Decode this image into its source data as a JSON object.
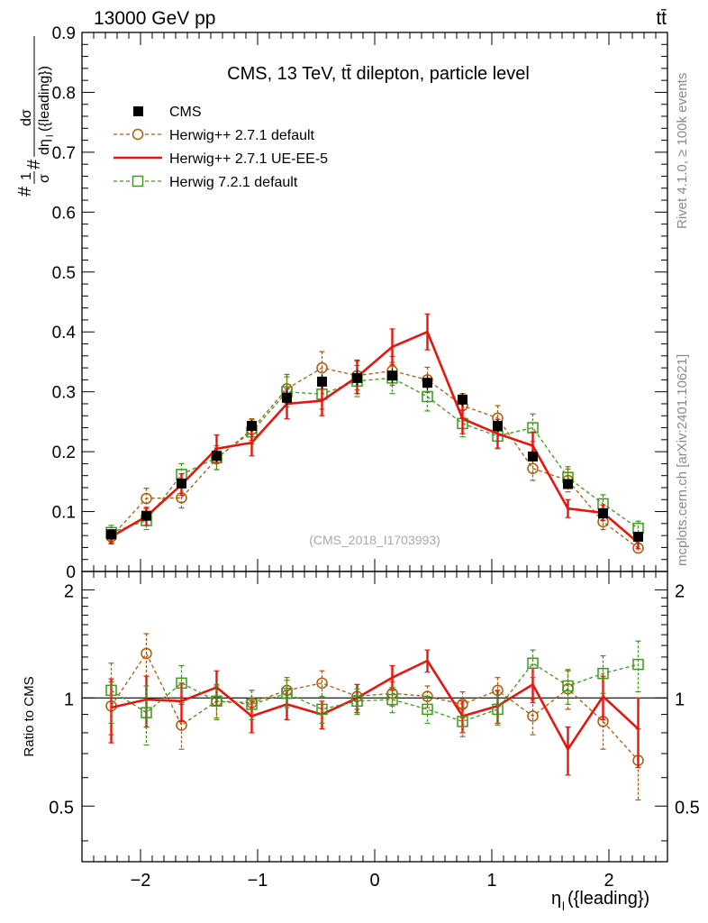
{
  "header": {
    "energy_label": "13000 GeV pp",
    "process_label": "tt̄"
  },
  "side_texts": {
    "rivet": "Rivet 4.1.0, ≥ 100k events",
    "mcplots": "mcplots.cern.ch [arXiv:2401.10621]"
  },
  "watermark": "(CMS_2018_I1703993)",
  "colors": {
    "cms": "#000000",
    "herwigpp_default": "#b35806",
    "herwigpp_ueee5": "#e8150f",
    "herwig7": "#3a9a1a"
  },
  "chart_data": [
    {
      "type": "line",
      "title": "CMS, 13 TeV, tt̄ dilepton, particle level",
      "ylabel": "#frac{1}{σ}#frac{dσ}{dη_l({leading})}",
      "ylabel_parts": {
        "prefix_top": "#",
        "prefix_bottom": "σ",
        "one": "1",
        "hash": "#",
        "num": "dσ",
        "den": "dη",
        "den_sub": "l",
        "den_suffix": "({leading})"
      },
      "ylim": [
        0,
        0.9
      ],
      "yticks": [
        0,
        0.1,
        0.2,
        0.3,
        0.4,
        0.5,
        0.6,
        0.7,
        0.8,
        0.9
      ],
      "ytick_labels": [
        "0",
        "0.1",
        "0.2",
        "0.3",
        "0.4",
        "0.5",
        "0.6",
        "0.7",
        "0.8",
        "0.9"
      ],
      "xlim": [
        -2.5,
        2.5
      ],
      "x": [
        -2.25,
        -1.95,
        -1.65,
        -1.35,
        -1.05,
        -0.75,
        -0.45,
        -0.15,
        0.15,
        0.45,
        0.75,
        1.05,
        1.35,
        1.65,
        1.95,
        2.25
      ],
      "legend": [
        "CMS",
        "Herwig++ 2.7.1 default",
        "Herwig++ 2.7.1 UE-EE-5",
        "Herwig 7.2.1 default"
      ],
      "series": [
        {
          "name": "CMS",
          "style": "square",
          "values": [
            0.062,
            0.093,
            0.147,
            0.193,
            0.243,
            0.29,
            0.317,
            0.323,
            0.327,
            0.315,
            0.287,
            0.243,
            0.192,
            0.146,
            0.097,
            0.058
          ],
          "errors": [
            0.005,
            0.006,
            0.008,
            0.01,
            0.01,
            0.012,
            0.012,
            0.012,
            0.012,
            0.012,
            0.011,
            0.01,
            0.009,
            0.008,
            0.006,
            0.005
          ]
        },
        {
          "name": "Herwig++ 2.7.1 default",
          "style": "circle-dashed",
          "values": [
            0.058,
            0.122,
            0.123,
            0.188,
            0.237,
            0.305,
            0.34,
            0.327,
            0.335,
            0.32,
            0.277,
            0.256,
            0.172,
            0.152,
            0.083,
            0.039
          ],
          "errors": [
            0.01,
            0.017,
            0.017,
            0.018,
            0.018,
            0.024,
            0.027,
            0.024,
            0.024,
            0.021,
            0.02,
            0.021,
            0.02,
            0.019,
            0.013,
            0.008
          ]
        },
        {
          "name": "Herwig++ 2.7.1 UE-EE-5",
          "style": "solid",
          "values": [
            0.058,
            0.092,
            0.145,
            0.205,
            0.215,
            0.28,
            0.285,
            0.325,
            0.375,
            0.4,
            0.255,
            0.23,
            0.21,
            0.105,
            0.098,
            0.048
          ],
          "errors": [
            0.012,
            0.015,
            0.018,
            0.023,
            0.022,
            0.025,
            0.025,
            0.028,
            0.03,
            0.03,
            0.025,
            0.024,
            0.023,
            0.015,
            0.013,
            0.01
          ]
        },
        {
          "name": "Herwig 7.2.1 default",
          "style": "square-dashed",
          "values": [
            0.065,
            0.085,
            0.162,
            0.19,
            0.233,
            0.3,
            0.296,
            0.318,
            0.323,
            0.292,
            0.247,
            0.226,
            0.24,
            0.157,
            0.113,
            0.072
          ],
          "errors": [
            0.012,
            0.015,
            0.018,
            0.02,
            0.02,
            0.025,
            0.025,
            0.026,
            0.026,
            0.024,
            0.022,
            0.021,
            0.023,
            0.018,
            0.015,
            0.012
          ]
        }
      ]
    },
    {
      "type": "line",
      "ylabel": "Ratio to CMS",
      "xlabel": "η_l({leading})",
      "xlabel_parts": {
        "main": "η",
        "sub": "l",
        "suffix": "({leading})"
      },
      "ylim": [
        0.35,
        2.25
      ],
      "yticks": [
        0.5,
        1,
        2
      ],
      "ytick_labels": [
        "0.5",
        "1",
        "2"
      ],
      "xlim": [
        -2.5,
        2.5
      ],
      "xticks": [
        -2,
        -1,
        0,
        1,
        2
      ],
      "xtick_labels": [
        "−2",
        "−1",
        "0",
        "1",
        "2"
      ],
      "reference": 1,
      "x": [
        -2.25,
        -1.95,
        -1.65,
        -1.35,
        -1.05,
        -0.75,
        -0.45,
        -0.15,
        0.15,
        0.45,
        0.75,
        1.05,
        1.35,
        1.65,
        1.95,
        2.25
      ],
      "series": [
        {
          "name": "Herwig++ 2.7.1 default",
          "style": "circle-dashed",
          "values": [
            0.95,
            1.33,
            0.84,
            0.98,
            0.97,
            1.05,
            1.1,
            1.01,
            1.03,
            1.01,
            0.96,
            1.05,
            0.89,
            1.06,
            0.86,
            0.67
          ],
          "errors": [
            0.16,
            0.18,
            0.12,
            0.1,
            0.08,
            0.09,
            0.09,
            0.08,
            0.08,
            0.07,
            0.08,
            0.09,
            0.1,
            0.13,
            0.14,
            0.15
          ]
        },
        {
          "name": "Herwig++ 2.7.1 UE-EE-5",
          "style": "solid",
          "values": [
            0.94,
            0.99,
            0.98,
            1.07,
            0.89,
            0.96,
            0.9,
            1.0,
            1.14,
            1.27,
            0.89,
            0.95,
            1.09,
            0.72,
            1.01,
            0.82
          ],
          "errors": [
            0.19,
            0.16,
            0.12,
            0.12,
            0.09,
            0.09,
            0.08,
            0.09,
            0.09,
            0.09,
            0.09,
            0.1,
            0.12,
            0.11,
            0.14,
            0.18
          ]
        },
        {
          "name": "Herwig 7.2.1 default",
          "style": "square-dashed",
          "values": [
            1.05,
            0.91,
            1.1,
            0.98,
            0.96,
            1.03,
            0.93,
            0.98,
            0.99,
            0.93,
            0.86,
            0.93,
            1.25,
            1.08,
            1.17,
            1.24
          ],
          "errors": [
            0.2,
            0.17,
            0.13,
            0.11,
            0.09,
            0.09,
            0.08,
            0.08,
            0.08,
            0.08,
            0.08,
            0.09,
            0.11,
            0.12,
            0.14,
            0.2
          ]
        }
      ]
    }
  ]
}
